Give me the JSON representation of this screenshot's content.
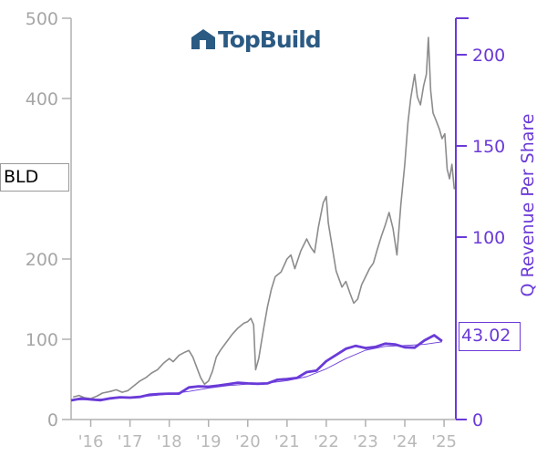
{
  "chart_data": {
    "type": "line",
    "ticker": "BLD",
    "logo_text": "TopBuild",
    "last_value_label": "43.02",
    "ylabel_right": "Q Revenue Per Share",
    "y_left": {
      "range": [
        0,
        500
      ],
      "ticks": [
        "0",
        "100",
        "200",
        "400",
        "500"
      ]
    },
    "y_right": {
      "range": [
        0,
        220
      ],
      "ticks": [
        "0",
        "100",
        "150",
        "200"
      ]
    },
    "x_ticks": [
      "'16",
      "'17",
      "'18",
      "'19",
      "'20",
      "'21",
      "'22",
      "'23",
      "'24",
      "'25"
    ],
    "x_range": [
      2015.5,
      2025.3
    ],
    "series": [
      {
        "color": "#8c8c8c",
        "axis": "left",
        "points": [
          [
            2015.55,
            28
          ],
          [
            2015.7,
            30
          ],
          [
            2015.85,
            27
          ],
          [
            2016.0,
            26
          ],
          [
            2016.15,
            29
          ],
          [
            2016.3,
            33
          ],
          [
            2016.5,
            35
          ],
          [
            2016.65,
            37
          ],
          [
            2016.8,
            34
          ],
          [
            2016.95,
            36
          ],
          [
            2017.1,
            42
          ],
          [
            2017.25,
            48
          ],
          [
            2017.4,
            52
          ],
          [
            2017.55,
            58
          ],
          [
            2017.7,
            62
          ],
          [
            2017.85,
            70
          ],
          [
            2018.0,
            76
          ],
          [
            2018.1,
            72
          ],
          [
            2018.25,
            80
          ],
          [
            2018.4,
            84
          ],
          [
            2018.5,
            86
          ],
          [
            2018.6,
            78
          ],
          [
            2018.7,
            65
          ],
          [
            2018.8,
            52
          ],
          [
            2018.9,
            44
          ],
          [
            2019.0,
            48
          ],
          [
            2019.1,
            60
          ],
          [
            2019.2,
            78
          ],
          [
            2019.3,
            86
          ],
          [
            2019.45,
            96
          ],
          [
            2019.6,
            106
          ],
          [
            2019.75,
            114
          ],
          [
            2019.9,
            120
          ],
          [
            2020.0,
            122
          ],
          [
            2020.08,
            126
          ],
          [
            2020.15,
            118
          ],
          [
            2020.2,
            62
          ],
          [
            2020.28,
            76
          ],
          [
            2020.4,
            112
          ],
          [
            2020.5,
            140
          ],
          [
            2020.6,
            162
          ],
          [
            2020.7,
            178
          ],
          [
            2020.85,
            184
          ],
          [
            2021.0,
            200
          ],
          [
            2021.1,
            205
          ],
          [
            2021.2,
            188
          ],
          [
            2021.35,
            210
          ],
          [
            2021.5,
            225
          ],
          [
            2021.6,
            215
          ],
          [
            2021.7,
            208
          ],
          [
            2021.8,
            240
          ],
          [
            2021.92,
            270
          ],
          [
            2022.0,
            278
          ],
          [
            2022.05,
            245
          ],
          [
            2022.15,
            215
          ],
          [
            2022.25,
            185
          ],
          [
            2022.4,
            165
          ],
          [
            2022.5,
            172
          ],
          [
            2022.6,
            158
          ],
          [
            2022.7,
            145
          ],
          [
            2022.8,
            150
          ],
          [
            2022.9,
            168
          ],
          [
            2023.0,
            178
          ],
          [
            2023.1,
            188
          ],
          [
            2023.2,
            195
          ],
          [
            2023.3,
            212
          ],
          [
            2023.4,
            228
          ],
          [
            2023.5,
            242
          ],
          [
            2023.6,
            258
          ],
          [
            2023.7,
            238
          ],
          [
            2023.8,
            205
          ],
          [
            2023.9,
            268
          ],
          [
            2024.0,
            318
          ],
          [
            2024.08,
            370
          ],
          [
            2024.15,
            400
          ],
          [
            2024.25,
            430
          ],
          [
            2024.32,
            402
          ],
          [
            2024.4,
            392
          ],
          [
            2024.48,
            416
          ],
          [
            2024.55,
            430
          ],
          [
            2024.6,
            476
          ],
          [
            2024.66,
            410
          ],
          [
            2024.72,
            382
          ],
          [
            2024.8,
            372
          ],
          [
            2024.88,
            362
          ],
          [
            2024.95,
            350
          ],
          [
            2025.02,
            356
          ],
          [
            2025.08,
            312
          ],
          [
            2025.14,
            300
          ],
          [
            2025.2,
            318
          ],
          [
            2025.26,
            287
          ]
        ]
      },
      {
        "color": "#6a3ad8",
        "axis": "right",
        "points": [
          [
            2015.5,
            10.5
          ],
          [
            2015.75,
            11.5
          ],
          [
            2016.0,
            11
          ],
          [
            2016.25,
            10.6
          ],
          [
            2016.5,
            11.6
          ],
          [
            2016.75,
            12.2
          ],
          [
            2017.0,
            12
          ],
          [
            2017.25,
            12.4
          ],
          [
            2017.5,
            13.6
          ],
          [
            2017.75,
            14
          ],
          [
            2018.0,
            14.2
          ],
          [
            2018.25,
            14.2
          ],
          [
            2018.5,
            17.6
          ],
          [
            2018.75,
            18.2
          ],
          [
            2019.0,
            18
          ],
          [
            2019.25,
            18.6
          ],
          [
            2019.5,
            19.4
          ],
          [
            2019.75,
            20.2
          ],
          [
            2020.0,
            19.8
          ],
          [
            2020.25,
            19.6
          ],
          [
            2020.5,
            19.8
          ],
          [
            2020.75,
            21.8
          ],
          [
            2021.0,
            22.2
          ],
          [
            2021.25,
            22.8
          ],
          [
            2021.5,
            26
          ],
          [
            2021.75,
            26.8
          ],
          [
            2022.0,
            32
          ],
          [
            2022.25,
            35.4
          ],
          [
            2022.5,
            38.8
          ],
          [
            2022.75,
            40.4
          ],
          [
            2023.0,
            39.2
          ],
          [
            2023.25,
            39.8
          ],
          [
            2023.5,
            41.6
          ],
          [
            2023.75,
            41.2
          ],
          [
            2024.0,
            39.6
          ],
          [
            2024.25,
            39.4
          ],
          [
            2024.5,
            43.4
          ],
          [
            2024.75,
            46.2
          ],
          [
            2024.95,
            43.02
          ]
        ]
      },
      {
        "color": "#6a3ad8",
        "axis": "right",
        "points": [
          [
            2015.5,
            10.6
          ],
          [
            2016.0,
            11
          ],
          [
            2016.5,
            11.4
          ],
          [
            2017.0,
            12.1
          ],
          [
            2017.5,
            12.9
          ],
          [
            2018.0,
            14
          ],
          [
            2018.5,
            15.4
          ],
          [
            2019.0,
            17.2
          ],
          [
            2019.5,
            18.6
          ],
          [
            2020.0,
            19.4
          ],
          [
            2020.5,
            20
          ],
          [
            2021.0,
            21.3
          ],
          [
            2021.5,
            23.5
          ],
          [
            2022.0,
            27.8
          ],
          [
            2022.5,
            33.4
          ],
          [
            2023.0,
            38
          ],
          [
            2023.5,
            40.1
          ],
          [
            2024.0,
            40.6
          ],
          [
            2024.5,
            41.2
          ],
          [
            2024.95,
            42.6
          ]
        ]
      }
    ]
  }
}
